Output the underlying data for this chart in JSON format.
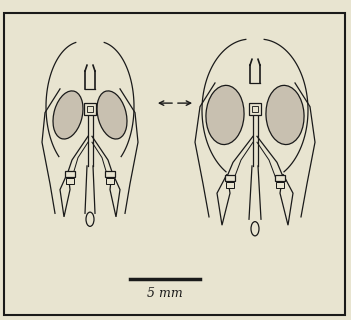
{
  "bg_color": "#e8e4d0",
  "border_color": "#1a1a1a",
  "line_color": "#1a1a1a",
  "stipple_color": "#c8c0b0",
  "white_color": "#e8e4d0",
  "scale_bar_label": "5 mm",
  "figsize": [
    3.51,
    3.2
  ],
  "dpi": 100
}
